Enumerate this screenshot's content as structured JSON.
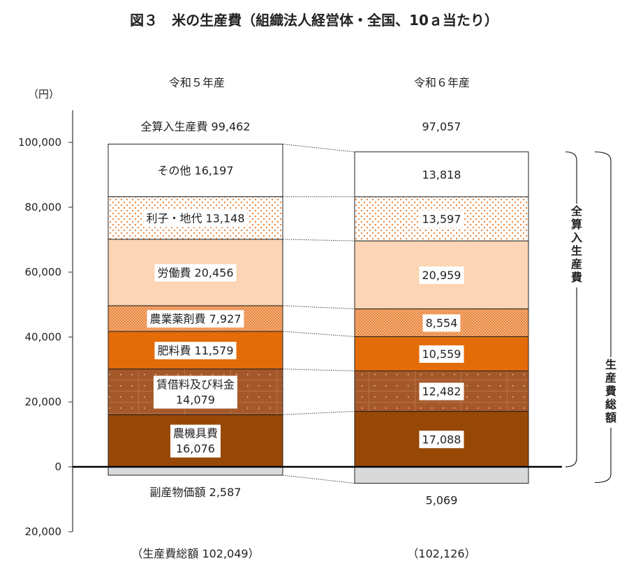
{
  "chart_data": {
    "type": "bar",
    "stacked": true,
    "title": "図３　米の生産費（組織法人経営体・全国、10ａ当たり）",
    "ylabel": "（円）",
    "ylim": [
      -20000,
      100000
    ],
    "yticks": [
      100000,
      80000,
      60000,
      40000,
      20000,
      0,
      -20000
    ],
    "ytick_labels": [
      "100,000",
      "80,000",
      "60,000",
      "40,000",
      "20,000",
      "0",
      "20,000"
    ],
    "categories": [
      "令和５年産",
      "令和６年産"
    ],
    "series": [
      {
        "name": "農機具費",
        "values": [
          16076,
          17088
        ],
        "color": "#974706",
        "pattern": "none"
      },
      {
        "name": "賃借料及び料金",
        "values": [
          14079,
          12482
        ],
        "color": "#A5592A",
        "pattern": "grid-dots"
      },
      {
        "name": "肥料費",
        "values": [
          11579,
          10559
        ],
        "color": "#E36C09",
        "pattern": "none"
      },
      {
        "name": "農業薬剤費",
        "values": [
          7927,
          8554
        ],
        "color": "#E8843A",
        "pattern": "dense-dots"
      },
      {
        "name": "労働費",
        "values": [
          20456,
          20959
        ],
        "color": "#FBD5B5",
        "pattern": "none"
      },
      {
        "name": "利子・地代",
        "values": [
          13148,
          13597
        ],
        "color": "#ffffff",
        "pattern": "orange-dots"
      },
      {
        "name": "その他",
        "values": [
          16197,
          13818
        ],
        "color": "#ffffff",
        "pattern": "none"
      }
    ],
    "byproduct": {
      "name": "副産物価額",
      "values": [
        2587,
        5069
      ],
      "color": "#D9D9D9"
    },
    "totals": {
      "name": "全算入生産費",
      "values": [
        "99,462",
        "97,057"
      ]
    },
    "total_cost": {
      "name": "生産費総額",
      "values": [
        "102,049",
        "102,126"
      ]
    },
    "value_labels": {
      "left": [
        "16,076",
        "14,079",
        "11,579",
        "7,927",
        "20,456",
        "13,148",
        "16,197"
      ],
      "right": [
        "17,088",
        "12,482",
        "10,559",
        "8,554",
        "20,959",
        "13,597",
        "13,818"
      ],
      "byproduct": [
        "2,587",
        "5,069"
      ]
    },
    "brackets": [
      "全算入生産費",
      "生産費総額"
    ]
  }
}
